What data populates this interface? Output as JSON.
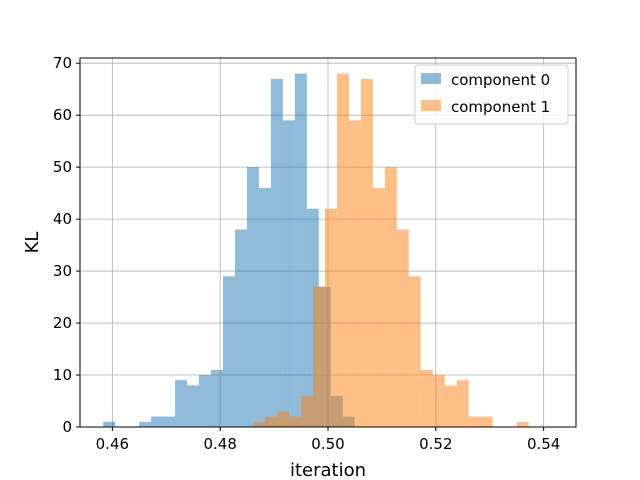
{
  "chart_data": {
    "type": "bar",
    "subtype": "histogram",
    "xlabel": "iteration",
    "ylabel": "KL",
    "xlim": [
      0.454,
      0.546
    ],
    "ylim": [
      0,
      71
    ],
    "xticks": [
      0.46,
      0.48,
      0.5,
      0.52,
      0.54
    ],
    "xtick_labels": [
      "0.46",
      "0.48",
      "0.50",
      "0.52",
      "0.54"
    ],
    "yticks": [
      0,
      10,
      20,
      30,
      40,
      50,
      60,
      70
    ],
    "ytick_labels": [
      "0",
      "10",
      "20",
      "30",
      "40",
      "50",
      "60",
      "70"
    ],
    "grid": true,
    "legend_position": "top-right",
    "series": [
      {
        "name": "component 0",
        "color": "#1f77b4",
        "alpha": 0.5,
        "bin_start": 0.4583,
        "bin_width": 0.002222,
        "counts": [
          1,
          0,
          0,
          1,
          2,
          2,
          9,
          8,
          10,
          11,
          29,
          38,
          50,
          46,
          67,
          59,
          68,
          42,
          27,
          6,
          2,
          0,
          0
        ]
      },
      {
        "name": "component 1",
        "color": "#ff7f0e",
        "alpha": 0.5,
        "bin_start": 0.4861,
        "bin_width": 0.002222,
        "counts": [
          1,
          2,
          3,
          2,
          6,
          27,
          42,
          68,
          59,
          67,
          46,
          50,
          38,
          29,
          11,
          10,
          8,
          9,
          2,
          2,
          0,
          0,
          1
        ]
      }
    ]
  }
}
